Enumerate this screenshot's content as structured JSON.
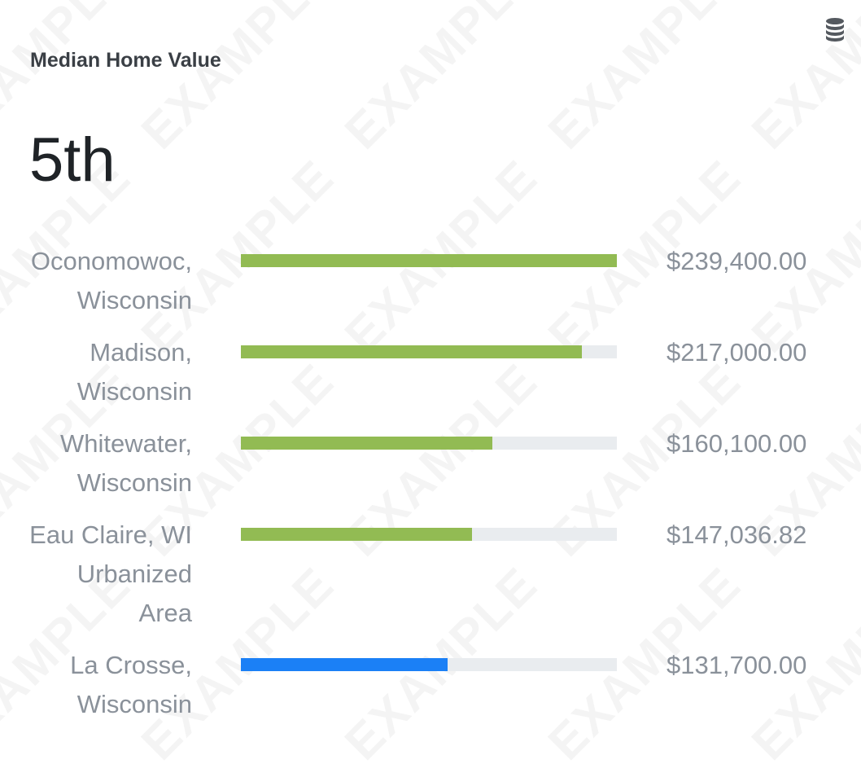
{
  "header": {
    "title": "Median Home Value",
    "rank": "5th",
    "watermark": "EXAMPLE",
    "data_icon": "database-icon"
  },
  "colors": {
    "comparison_bar": "#92bb53",
    "highlight_bar": "#1b80f6",
    "track": "#e9ecef",
    "label_text": "#8a919a"
  },
  "chart_data": {
    "type": "bar",
    "orientation": "horizontal",
    "categories": [
      "Oconomowoc, Wisconsin",
      "Madison, Wisconsin",
      "Whitewater, Wisconsin",
      "Eau Claire, WI Urbanized Area",
      "La Crosse, Wisconsin"
    ],
    "values": [
      239400.0,
      217000.0,
      160100.0,
      147036.82,
      131700.0
    ],
    "value_labels": [
      "$239,400.00",
      "$217,000.00",
      "$160,100.00",
      "$147,036.82",
      "$131,700.00"
    ],
    "highlighted_index": 4,
    "xlim": [
      0,
      239400
    ],
    "grid": false,
    "legend": "none"
  }
}
